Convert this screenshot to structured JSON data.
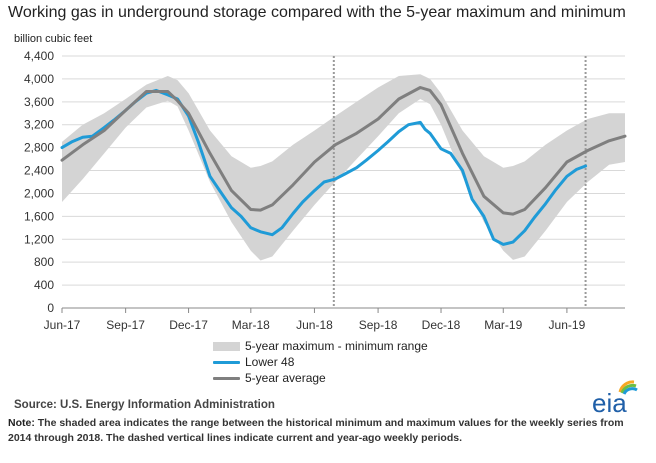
{
  "title": "Working gas in underground  storage compared with the 5-year maximum and minimum",
  "unit_label": "billion cubic feet",
  "legend": {
    "range": "5-year maximum - minimum range",
    "lower48": "Lower 48",
    "avg": "5-year average"
  },
  "source": "Source:  U.S. Energy Information Administration",
  "note_label": "Note:",
  "note_text": " The shaded area indicates the range between the historical minimum and maximum values for the weekly series from 2014 through 2018. The dashed vertical lines indicate current and year-ago weekly periods.",
  "logo_text": "eia",
  "colors": {
    "band": "#d4d4d4",
    "lower48": "#1f9bd7",
    "avg": "#7f7f7f",
    "grid": "#d9d9d9",
    "dashed": "#9a9a9a"
  },
  "chart_data": {
    "type": "line",
    "ylim": [
      0,
      4400
    ],
    "yticks": [
      0,
      400,
      800,
      1200,
      1600,
      2000,
      2400,
      2800,
      3200,
      3600,
      4000,
      4400
    ],
    "ytick_labels": [
      "0",
      "400",
      "800",
      "1,200",
      "1,600",
      "2,000",
      "2,400",
      "2,800",
      "3,200",
      "3,600",
      "4,000",
      "4,400"
    ],
    "x_range": [
      "2017-06-01",
      "2019-08-24"
    ],
    "xtick_dates": [
      "2017-06-01",
      "2017-09-01",
      "2017-12-01",
      "2018-03-01",
      "2018-06-01",
      "2018-09-01",
      "2018-12-01",
      "2019-03-01",
      "2019-06-01"
    ],
    "xtick_labels": [
      "Jun-17",
      "Sep-17",
      "Dec-17",
      "Mar-18",
      "Jun-18",
      "Sep-18",
      "Dec-18",
      "Mar-19",
      "Jun-19"
    ],
    "grid": true,
    "legend_position": "bottom-center",
    "dashed_lines": [
      "2018-06-29",
      "2019-06-28"
    ],
    "series": [
      {
        "name": "5-year maximum - minimum range",
        "kind": "band",
        "x": [
          "2017-06-01",
          "2017-07-01",
          "2017-08-01",
          "2017-09-01",
          "2017-10-01",
          "2017-11-01",
          "2017-11-15",
          "2017-12-01",
          "2018-01-01",
          "2018-02-01",
          "2018-03-01",
          "2018-03-15",
          "2018-04-01",
          "2018-05-01",
          "2018-06-01",
          "2018-07-01",
          "2018-08-01",
          "2018-09-01",
          "2018-10-01",
          "2018-11-01",
          "2018-11-15",
          "2018-12-01",
          "2019-01-01",
          "2019-02-01",
          "2019-03-01",
          "2019-03-15",
          "2019-04-01",
          "2019-05-01",
          "2019-06-01",
          "2019-07-01",
          "2019-08-01",
          "2019-08-24"
        ],
        "low": [
          1850,
          2250,
          2700,
          3150,
          3500,
          3620,
          3520,
          3100,
          2200,
          1500,
          1000,
          830,
          900,
          1350,
          1800,
          2200,
          2600,
          3000,
          3400,
          3650,
          3560,
          3200,
          2300,
          1500,
          1000,
          840,
          900,
          1350,
          1850,
          2200,
          2500,
          2550
        ],
        "high": [
          2900,
          3200,
          3400,
          3650,
          3900,
          4050,
          3980,
          3750,
          3100,
          2650,
          2450,
          2480,
          2560,
          2850,
          3100,
          3350,
          3600,
          3850,
          4050,
          4080,
          4000,
          3750,
          3100,
          2650,
          2450,
          2480,
          2560,
          2850,
          3100,
          3300,
          3400,
          3400
        ]
      },
      {
        "name": "Lower 48",
        "kind": "line",
        "x": [
          "2017-06-01",
          "2017-06-15",
          "2017-07-01",
          "2017-07-15",
          "2017-08-01",
          "2017-08-15",
          "2017-09-01",
          "2017-09-15",
          "2017-10-01",
          "2017-10-15",
          "2017-11-01",
          "2017-11-15",
          "2017-12-01",
          "2017-12-15",
          "2018-01-01",
          "2018-01-15",
          "2018-02-01",
          "2018-02-15",
          "2018-03-01",
          "2018-03-15",
          "2018-04-01",
          "2018-04-15",
          "2018-05-01",
          "2018-05-15",
          "2018-06-01",
          "2018-06-15",
          "2018-07-01",
          "2018-07-15",
          "2018-08-01",
          "2018-08-15",
          "2018-09-01",
          "2018-09-15",
          "2018-10-01",
          "2018-10-15",
          "2018-11-01",
          "2018-11-08",
          "2018-11-15",
          "2018-12-01",
          "2018-12-15",
          "2019-01-01",
          "2019-01-15",
          "2019-02-01",
          "2019-02-15",
          "2019-03-01",
          "2019-03-15",
          "2019-04-01",
          "2019-04-15",
          "2019-05-01",
          "2019-05-15",
          "2019-06-01",
          "2019-06-15",
          "2019-06-28"
        ],
        "values": [
          2800,
          2900,
          2980,
          3000,
          3150,
          3280,
          3450,
          3600,
          3750,
          3800,
          3720,
          3650,
          3350,
          2900,
          2300,
          2050,
          1750,
          1600,
          1400,
          1330,
          1280,
          1400,
          1650,
          1850,
          2050,
          2200,
          2250,
          2340,
          2450,
          2580,
          2750,
          2900,
          3080,
          3200,
          3240,
          3120,
          3050,
          2780,
          2700,
          2400,
          1900,
          1600,
          1200,
          1110,
          1150,
          1350,
          1580,
          1820,
          2050,
          2300,
          2420,
          2480
        ]
      },
      {
        "name": "5-year average",
        "kind": "line",
        "x": [
          "2017-06-01",
          "2017-07-01",
          "2017-08-01",
          "2017-09-01",
          "2017-10-01",
          "2017-11-01",
          "2017-11-15",
          "2017-12-01",
          "2018-01-01",
          "2018-02-01",
          "2018-03-01",
          "2018-03-15",
          "2018-04-01",
          "2018-05-01",
          "2018-06-01",
          "2018-07-01",
          "2018-08-01",
          "2018-09-01",
          "2018-10-01",
          "2018-11-01",
          "2018-11-15",
          "2018-12-01",
          "2019-01-01",
          "2019-02-01",
          "2019-03-01",
          "2019-03-15",
          "2019-04-01",
          "2019-05-01",
          "2019-06-01",
          "2019-07-01",
          "2019-08-01",
          "2019-08-24"
        ],
        "values": [
          2580,
          2850,
          3100,
          3450,
          3780,
          3780,
          3620,
          3400,
          2700,
          2050,
          1720,
          1710,
          1800,
          2150,
          2550,
          2850,
          3050,
          3300,
          3650,
          3850,
          3800,
          3550,
          2700,
          1950,
          1660,
          1640,
          1720,
          2100,
          2550,
          2750,
          2920,
          3000
        ]
      }
    ]
  }
}
